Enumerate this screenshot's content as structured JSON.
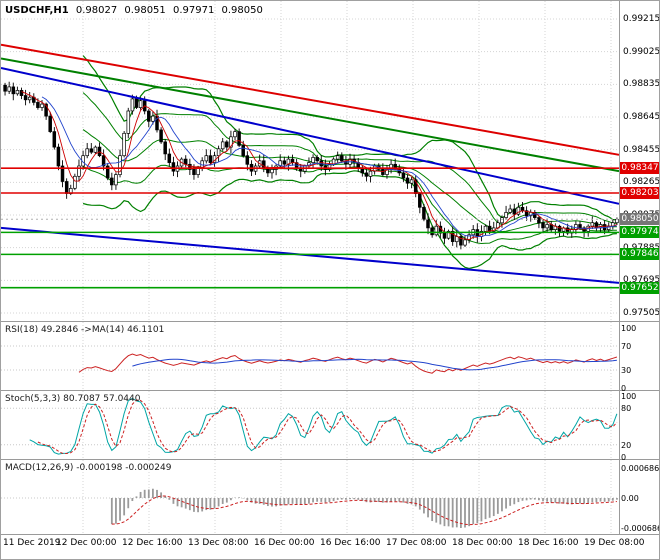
{
  "header": {
    "symbol": "USDCHF,H1",
    "open": "0.98027",
    "high": "0.98051",
    "low": "0.97971",
    "close": "0.98050"
  },
  "panels": {
    "rsi": {
      "label": "RSI(18) 49.2846 ->MA(14) 46.1101",
      "scale": [
        "100",
        "70",
        "30",
        "0"
      ]
    },
    "stoch": {
      "label": "Stoch(5,3,3) 80.7087 57.0440",
      "scale": [
        "100",
        "80",
        "20",
        "0"
      ]
    },
    "macd": {
      "label": "MACD(12,26,9) -0.000198 -0.000249",
      "scale": [
        "0.000686",
        "0.00",
        "-0.000686"
      ]
    }
  },
  "axes": {
    "price_ticks": [
      "0.99215",
      "0.99025",
      "0.98835",
      "0.98645",
      "0.98455",
      "0.98265",
      "0.98075",
      "0.97885",
      "0.97695",
      "0.97505"
    ],
    "time_labels": [
      "11 Dec 2019",
      "12 Dec 00:00",
      "12 Dec 16:00",
      "13 Dec 08:00",
      "16 Dec 00:00",
      "16 Dec 16:00",
      "17 Dec 08:00",
      "18 Dec 00:00",
      "18 Dec 16:00",
      "19 Dec 08:00"
    ]
  },
  "levels": {
    "resistance": [
      "0.98347",
      "0.98203"
    ],
    "support": [
      "0.97974",
      "0.97846",
      "0.97652"
    ],
    "current": "0.98050"
  },
  "colors": {
    "resistance": "#e00000",
    "support": "#00a000",
    "trend_red": "#dd0000",
    "trend_green": "#008000",
    "trend_blue": "#0000cc",
    "stoch_main": "#00a5a5",
    "signal_red": "#cc2222",
    "histogram": "#9a9a9a"
  },
  "chart_data": {
    "type": "candlestick",
    "symbol": "USDCHF",
    "timeframe": "H1",
    "current_bar": {
      "open": 0.98027,
      "high": 0.98051,
      "low": 0.97971,
      "close": 0.9805
    },
    "y_axis": {
      "min": 0.97505,
      "max": 0.99215
    },
    "x_labels": [
      "11 Dec 2019",
      "12 Dec 00:00",
      "12 Dec 16:00",
      "13 Dec 08:00",
      "16 Dec 00:00",
      "16 Dec 16:00",
      "17 Dec 08:00",
      "18 Dec 00:00",
      "18 Dec 16:00",
      "19 Dec 08:00"
    ],
    "open_first": 0.9883,
    "closes": [
      0.98795,
      0.9882,
      0.9878,
      0.988,
      0.9877,
      0.98745,
      0.9876,
      0.9873,
      0.987,
      0.9872,
      0.9865,
      0.9856,
      0.9847,
      0.9836,
      0.9827,
      0.982,
      0.9823,
      0.983,
      0.9836,
      0.9842,
      0.9846,
      0.9844,
      0.9847,
      0.9842,
      0.9836,
      0.9829,
      0.9825,
      0.9831,
      0.9842,
      0.9855,
      0.9868,
      0.9875,
      0.987,
      0.9874,
      0.9868,
      0.9862,
      0.9865,
      0.9857,
      0.985,
      0.9843,
      0.9838,
      0.9833,
      0.9836,
      0.984,
      0.9837,
      0.9834,
      0.9831,
      0.9835,
      0.9839,
      0.9842,
      0.9838,
      0.9842,
      0.9846,
      0.985,
      0.9847,
      0.9853,
      0.9856,
      0.9848,
      0.9842,
      0.9837,
      0.9833,
      0.9836,
      0.9839,
      0.9835,
      0.9832,
      0.9834,
      0.9836,
      0.9839,
      0.9837,
      0.984,
      0.9838,
      0.9835,
      0.9833,
      0.9836,
      0.9838,
      0.9841,
      0.9839,
      0.9836,
      0.9834,
      0.9837,
      0.984,
      0.9842,
      0.9839,
      0.9837,
      0.984,
      0.9838,
      0.9835,
      0.9832,
      0.983,
      0.9833,
      0.9836,
      0.9834,
      0.9831,
      0.9834,
      0.9837,
      0.9835,
      0.9832,
      0.9829,
      0.9826,
      0.9828,
      0.982,
      0.9812,
      0.9805,
      0.98,
      0.9796,
      0.9801,
      0.9797,
      0.9794,
      0.9798,
      0.9792,
      0.9795,
      0.979,
      0.9793,
      0.9796,
      0.9799,
      0.9795,
      0.9798,
      0.9801,
      0.9798,
      0.98,
      0.9803,
      0.9806,
      0.9809,
      0.9811,
      0.9808,
      0.9812,
      0.981,
      0.9807,
      0.9809,
      0.9806,
      0.9803,
      0.98,
      0.9802,
      0.9799,
      0.9801,
      0.9798,
      0.98,
      0.9797,
      0.9799,
      0.9802,
      0.98,
      0.9798,
      0.9801,
      0.9803,
      0.98,
      0.9802,
      0.9799,
      0.9801,
      0.9803,
      0.9805
    ],
    "trend_lines": [
      {
        "from": 0.99065,
        "to": 0.98425,
        "color": "#dd0000"
      },
      {
        "from": 0.98985,
        "to": 0.9833,
        "color": "#008000"
      },
      {
        "from": 0.9893,
        "to": 0.9814,
        "color": "#0000cc"
      },
      {
        "from": 0.98,
        "to": 0.9768,
        "color": "#0000cc"
      }
    ],
    "levels": {
      "resistance": [
        0.98347,
        0.98203
      ],
      "support": [
        0.97974,
        0.97846,
        0.97652
      ],
      "current": 0.9805
    },
    "indicators": {
      "bollinger": {
        "period": 20,
        "deviations": [
          1,
          2
        ],
        "color": "#008000"
      },
      "ma_fast": {
        "period": 5,
        "color": "#cc0000"
      },
      "ma_slow": {
        "period": 10,
        "color": "#2244cc"
      },
      "rsi": {
        "period": 18,
        "value": 49.2846,
        "ma_period": 14,
        "ma_value": 46.1101,
        "levels": [
          70,
          30
        ],
        "range": [
          0,
          100
        ]
      },
      "stochastic": {
        "k": 5,
        "d": 3,
        "slowing": 3,
        "value": 80.7087,
        "signal": 57.044,
        "levels": [
          80,
          20
        ],
        "range": [
          0,
          100
        ]
      },
      "macd": {
        "fast": 12,
        "slow": 26,
        "signal": 9,
        "value": -0.000198,
        "signal_value": -0.000249,
        "scale_max": 0.000686
      }
    }
  }
}
